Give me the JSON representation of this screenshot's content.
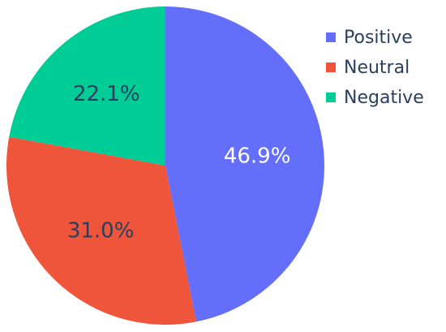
{
  "chart_data": {
    "type": "pie",
    "slices": [
      {
        "label": "Positive",
        "value": 46.9,
        "display": "46.9%",
        "color": "#636efa",
        "label_color": "#ffffff"
      },
      {
        "label": "Neutral",
        "value": 31.0,
        "display": "31.0%",
        "color": "#ef553b",
        "label_color": "#2a3f5f"
      },
      {
        "label": "Negative",
        "value": 22.1,
        "display": "22.1%",
        "color": "#00cc96",
        "label_color": "#2a3f5f"
      }
    ],
    "legend": [
      "Positive",
      "Neutral",
      "Negative"
    ],
    "legend_position": "top-right",
    "direction": "clockwise",
    "start": "top"
  }
}
